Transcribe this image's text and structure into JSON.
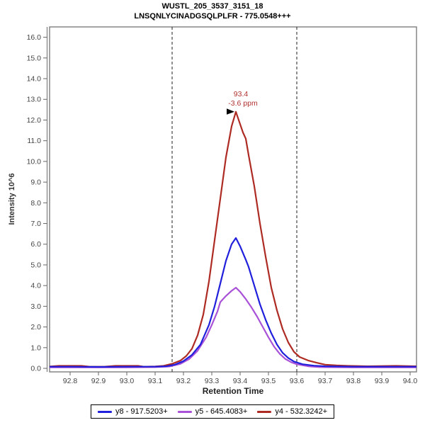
{
  "header": {
    "title_line1": "WUSTL_205_3537_3151_18",
    "title_line2": "LNSQNLYCINADGSQLPLFR - 775.0548+++"
  },
  "chart_data": {
    "type": "line",
    "title": "WUSTL_205_3537_3151_18",
    "subtitle": "LNSQNLYCINADGSQLPLFR - 775.0548+++",
    "xlabel": "Retention Time",
    "ylabel": "Intensity 10^6",
    "xlim": [
      92.73,
      94.02
    ],
    "ylim": [
      0,
      16.5
    ],
    "grid": false,
    "legend_position": "bottom",
    "x_tick_labels": [
      "92.8",
      "92.9",
      "93.0",
      "93.1",
      "93.2",
      "93.3",
      "93.4",
      "93.5",
      "93.6",
      "93.7",
      "93.8",
      "93.9",
      "94.0"
    ],
    "y_tick_labels": [
      "0.0",
      "1.0",
      "2.0",
      "3.0",
      "4.0",
      "5.0",
      "6.0",
      "7.0",
      "8.0",
      "9.0",
      "10.0",
      "11.0",
      "12.0",
      "13.0",
      "14.0",
      "15.0",
      "16.0"
    ],
    "integration_boundaries_x": [
      93.16,
      93.6
    ],
    "annotation": {
      "rt_label": "93.4",
      "ppm_label": "-3.6 ppm",
      "x": 93.385,
      "y": 12.4,
      "color": "#b03030"
    },
    "colors": {
      "plot_border": "#7d7d7d",
      "tick_label": "#444444",
      "boundary_dash": "#333333"
    },
    "series": [
      {
        "name": "y8 - 917.5203+",
        "color": "#2020dc",
        "points": [
          [
            92.73,
            0.08
          ],
          [
            92.8,
            0.08
          ],
          [
            92.9,
            0.07
          ],
          [
            93.0,
            0.08
          ],
          [
            93.1,
            0.08
          ],
          [
            93.14,
            0.1
          ],
          [
            93.17,
            0.18
          ],
          [
            93.2,
            0.35
          ],
          [
            93.23,
            0.65
          ],
          [
            93.26,
            1.15
          ],
          [
            93.29,
            2.1
          ],
          [
            93.31,
            3.0
          ],
          [
            93.33,
            4.1
          ],
          [
            93.35,
            5.2
          ],
          [
            93.37,
            6.0
          ],
          [
            93.385,
            6.3
          ],
          [
            93.4,
            5.9
          ],
          [
            93.42,
            5.25
          ],
          [
            93.43,
            4.9
          ],
          [
            93.45,
            4.0
          ],
          [
            93.47,
            3.1
          ],
          [
            93.49,
            2.35
          ],
          [
            93.51,
            1.7
          ],
          [
            93.53,
            1.15
          ],
          [
            93.55,
            0.75
          ],
          [
            93.57,
            0.5
          ],
          [
            93.59,
            0.33
          ],
          [
            93.62,
            0.2
          ],
          [
            93.66,
            0.13
          ],
          [
            93.7,
            0.1
          ],
          [
            93.8,
            0.08
          ],
          [
            93.9,
            0.08
          ],
          [
            94.02,
            0.08
          ]
        ]
      },
      {
        "name": "y5 - 645.4083+",
        "color": "#a952d8",
        "points": [
          [
            92.73,
            0.05
          ],
          [
            92.8,
            0.05
          ],
          [
            92.9,
            0.05
          ],
          [
            93.0,
            0.05
          ],
          [
            93.1,
            0.06
          ],
          [
            93.15,
            0.09
          ],
          [
            93.19,
            0.22
          ],
          [
            93.22,
            0.45
          ],
          [
            93.25,
            0.85
          ],
          [
            93.28,
            1.5
          ],
          [
            93.3,
            2.1
          ],
          [
            93.32,
            2.75
          ],
          [
            93.33,
            3.2
          ],
          [
            93.35,
            3.5
          ],
          [
            93.37,
            3.75
          ],
          [
            93.385,
            3.9
          ],
          [
            93.4,
            3.7
          ],
          [
            93.42,
            3.35
          ],
          [
            93.44,
            2.95
          ],
          [
            93.46,
            2.5
          ],
          [
            93.48,
            2.0
          ],
          [
            93.5,
            1.5
          ],
          [
            93.52,
            1.05
          ],
          [
            93.54,
            0.7
          ],
          [
            93.56,
            0.45
          ],
          [
            93.58,
            0.3
          ],
          [
            93.6,
            0.2
          ],
          [
            93.64,
            0.1
          ],
          [
            93.68,
            0.06
          ],
          [
            93.8,
            0.05
          ],
          [
            93.9,
            0.05
          ],
          [
            94.02,
            0.05
          ]
        ]
      },
      {
        "name": "y4 - 532.3242+",
        "color": "#ae2b24",
        "points": [
          [
            92.73,
            0.09
          ],
          [
            92.76,
            0.12
          ],
          [
            92.8,
            0.12
          ],
          [
            92.84,
            0.12
          ],
          [
            92.87,
            0.08
          ],
          [
            92.92,
            0.08
          ],
          [
            92.96,
            0.12
          ],
          [
            93.0,
            0.12
          ],
          [
            93.04,
            0.12
          ],
          [
            93.06,
            0.08
          ],
          [
            93.1,
            0.09
          ],
          [
            93.13,
            0.12
          ],
          [
            93.16,
            0.22
          ],
          [
            93.19,
            0.38
          ],
          [
            93.21,
            0.6
          ],
          [
            93.23,
            0.95
          ],
          [
            93.25,
            1.6
          ],
          [
            93.27,
            2.6
          ],
          [
            93.29,
            4.2
          ],
          [
            93.31,
            6.2
          ],
          [
            93.33,
            8.2
          ],
          [
            93.35,
            10.2
          ],
          [
            93.37,
            11.7
          ],
          [
            93.385,
            12.4
          ],
          [
            93.4,
            11.8
          ],
          [
            93.41,
            11.4
          ],
          [
            93.42,
            11.1
          ],
          [
            93.43,
            10.3
          ],
          [
            93.45,
            8.8
          ],
          [
            93.47,
            7.0
          ],
          [
            93.49,
            5.4
          ],
          [
            93.51,
            3.9
          ],
          [
            93.53,
            2.8
          ],
          [
            93.55,
            1.9
          ],
          [
            93.57,
            1.25
          ],
          [
            93.59,
            0.8
          ],
          [
            93.61,
            0.55
          ],
          [
            93.64,
            0.38
          ],
          [
            93.67,
            0.27
          ],
          [
            93.7,
            0.18
          ],
          [
            93.74,
            0.14
          ],
          [
            93.78,
            0.12
          ],
          [
            93.85,
            0.1
          ],
          [
            93.95,
            0.12
          ],
          [
            94.02,
            0.1
          ]
        ]
      }
    ]
  }
}
